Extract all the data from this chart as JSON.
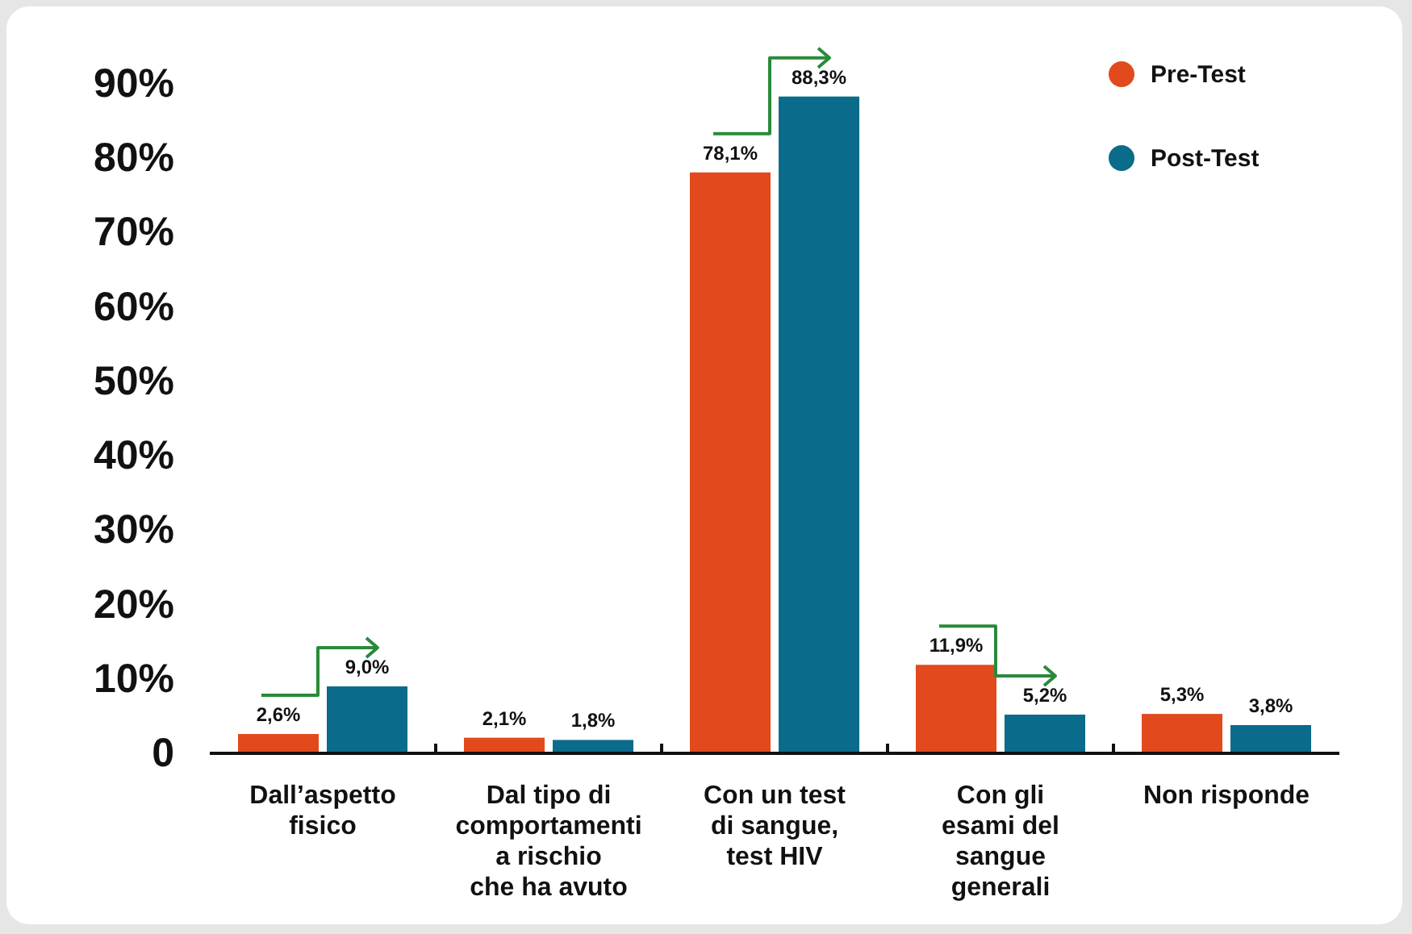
{
  "chart_data": {
    "type": "bar",
    "categories": [
      "Dall’aspetto fisico",
      "Dal tipo di comportamenti a rischio che ha avuto",
      "Con un test di sangue, test HIV",
      "Con gli esami del sangue generali",
      "Non risponde"
    ],
    "series": [
      {
        "name": "Pre-Test",
        "color": "#e2491d",
        "values": [
          2.6,
          2.1,
          78.1,
          11.9,
          5.3
        ],
        "value_labels": [
          "2,6%",
          "2,1%",
          "78,1%",
          "11,9%",
          "5,3%"
        ]
      },
      {
        "name": "Post-Test",
        "color": "#0a6b8a",
        "values": [
          9.0,
          1.8,
          88.3,
          5.2,
          3.8
        ],
        "value_labels": [
          "9,0%",
          "1,8%",
          "88,3%",
          "5,2%",
          "3,8%"
        ]
      }
    ],
    "ylim": [
      0,
      90
    ],
    "yticks": [
      {
        "value": 0,
        "label": "0"
      },
      {
        "value": 10,
        "label": "10%"
      },
      {
        "value": 20,
        "label": "20%"
      },
      {
        "value": 30,
        "label": "30%"
      },
      {
        "value": 40,
        "label": "40%"
      },
      {
        "value": 50,
        "label": "50%"
      },
      {
        "value": 60,
        "label": "60%"
      },
      {
        "value": 70,
        "label": "70%"
      },
      {
        "value": 80,
        "label": "80%"
      },
      {
        "value": 90,
        "label": "90%"
      }
    ],
    "legend": "top right"
  }
}
